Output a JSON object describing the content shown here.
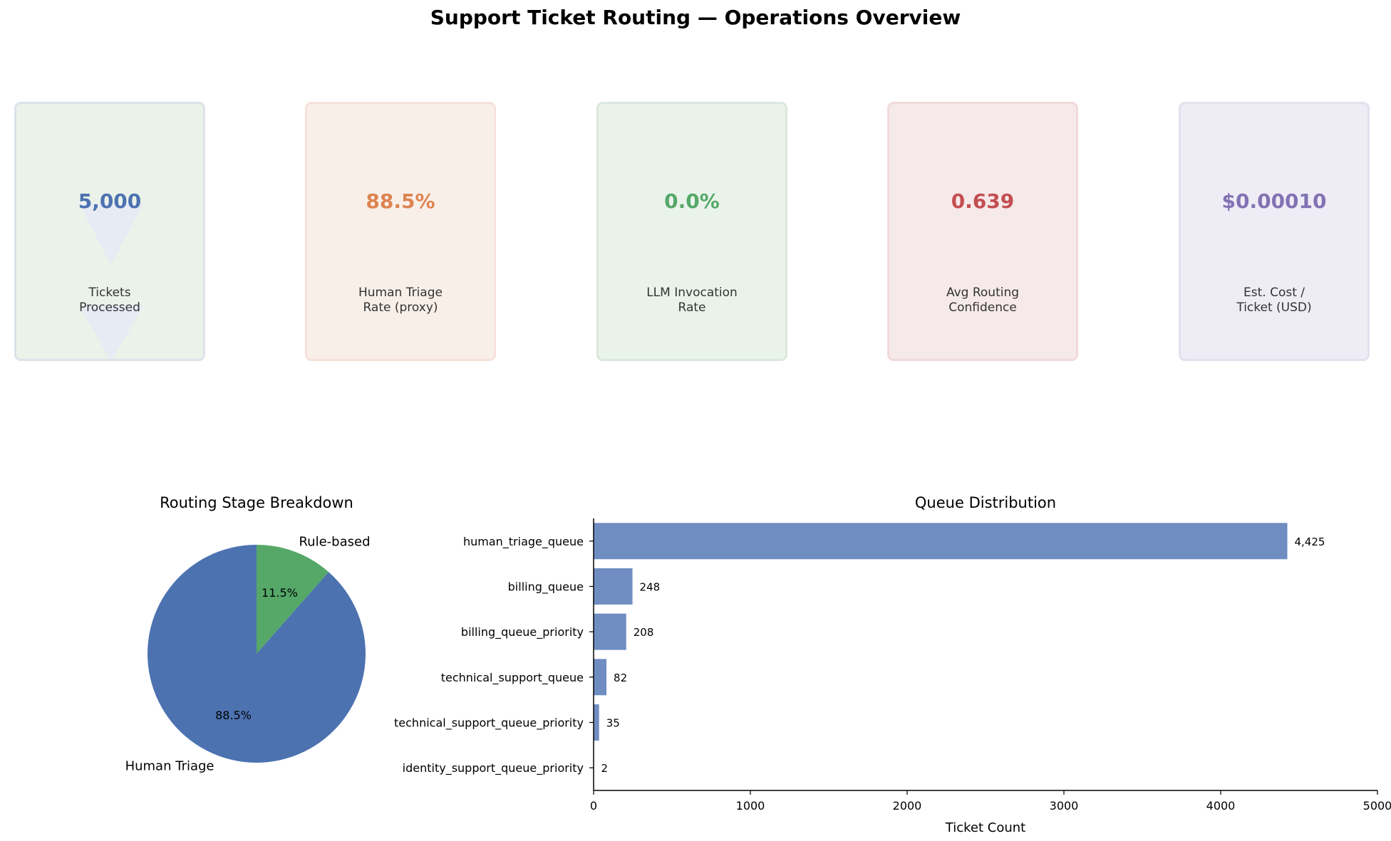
{
  "dashboard": {
    "title": "Support Ticket Routing — Operations Overview"
  },
  "kpis": [
    {
      "value": "5,000",
      "label": "Tickets\nProcessed",
      "color": "#4c72b0",
      "bg": "#eaf2ea",
      "border": "#dde3ea"
    },
    {
      "value": "88.5%",
      "label": "Human Triage\nRate (proxy)",
      "color": "#dd8452",
      "bg": "#f9efe9",
      "border": "#f6e1da"
    },
    {
      "value": "0.0%",
      "label": "LLM Invocation\nRate",
      "color": "#55a868",
      "bg": "#e9f3ea",
      "border": "#dbe7de"
    },
    {
      "value": "0.639",
      "label": "Avg Routing\nConfidence",
      "color": "#c44e52",
      "bg": "#f6e9e9",
      "border": "#f2dada"
    },
    {
      "value": "$0.00010",
      "label": "Est. Cost /\nTicket (USD)",
      "color": "#8172b3",
      "bg": "#eeecf5",
      "border": "#e1e2ec"
    }
  ],
  "chart_data": [
    {
      "type": "pie",
      "title": "Routing Stage Breakdown",
      "labels": [
        "Rule-based",
        "Human Triage"
      ],
      "values": [
        11.5,
        88.5
      ],
      "pct_labels": [
        "11.5%",
        "88.5%"
      ],
      "colors": [
        "#55a868",
        "#4c72b0"
      ],
      "start_angle_deg": 90,
      "direction": "clockwise"
    },
    {
      "type": "bar",
      "orientation": "horizontal",
      "title": "Queue Distribution",
      "categories": [
        "human_triage_queue",
        "billing_queue",
        "billing_queue_priority",
        "technical_support_queue",
        "technical_support_queue_priority",
        "identity_support_queue_priority"
      ],
      "values": [
        4425,
        248,
        208,
        82,
        35,
        2
      ],
      "value_labels": [
        "4,425",
        "248",
        "208",
        "82",
        "35",
        "2"
      ],
      "xlabel": "Ticket Count",
      "ylabel": "",
      "xlim": [
        0,
        5000
      ],
      "xticks": [
        "0",
        "1000",
        "2000",
        "3000",
        "4000",
        "5000"
      ],
      "bar_color": "#6f8dc1",
      "grid": false
    }
  ]
}
